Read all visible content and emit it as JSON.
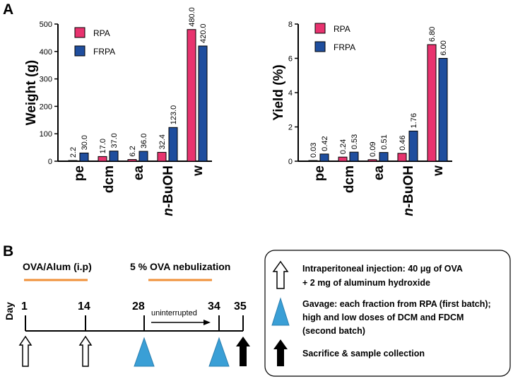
{
  "panels": {
    "a": "A",
    "b": "B"
  },
  "chart_data": [
    {
      "type": "bar",
      "ylabel": "Weight (g)",
      "ylim": [
        0,
        500
      ],
      "yticks": [
        0,
        100,
        200,
        300,
        400,
        500
      ],
      "categories": [
        "pe",
        "dcm",
        "ea",
        "n-BuOH",
        "w"
      ],
      "category_labels": [
        {
          "italic": "",
          "rest": "pe"
        },
        {
          "italic": "",
          "rest": "dcm"
        },
        {
          "italic": "",
          "rest": "ea"
        },
        {
          "italic": "n",
          "rest": "-BuOH"
        },
        {
          "italic": "",
          "rest": "w"
        }
      ],
      "series": [
        {
          "name": "RPA",
          "color": "#e8336f",
          "values": [
            2.2,
            17.0,
            6.2,
            32.4,
            480.0
          ],
          "labels": [
            "2.2",
            "17.0",
            "6.2",
            "32.4",
            "480.0"
          ]
        },
        {
          "name": "FRPA",
          "color": "#1f4e9e",
          "values": [
            30.0,
            37.0,
            36.0,
            123.0,
            420.0
          ],
          "labels": [
            "30.0",
            "37.0",
            "36.0",
            "123.0",
            "420.0"
          ]
        }
      ],
      "legend": "top-left"
    },
    {
      "type": "bar",
      "ylabel": "Yield (%)",
      "ylim": [
        0,
        8
      ],
      "yticks": [
        0,
        2,
        4,
        6,
        8
      ],
      "categories": [
        "pe",
        "dcm",
        "ea",
        "n-BuOH",
        "w"
      ],
      "category_labels": [
        {
          "italic": "",
          "rest": "pe"
        },
        {
          "italic": "",
          "rest": "dcm"
        },
        {
          "italic": "",
          "rest": "ea"
        },
        {
          "italic": "n",
          "rest": "-BuOH"
        },
        {
          "italic": "",
          "rest": "w"
        }
      ],
      "series": [
        {
          "name": "RPA",
          "color": "#e8336f",
          "values": [
            0.03,
            0.24,
            0.09,
            0.46,
            6.8
          ],
          "labels": [
            "0.03",
            "0.24",
            "0.09",
            "0.46",
            "6.80"
          ]
        },
        {
          "name": "FRPA",
          "color": "#1f4e9e",
          "values": [
            0.42,
            0.53,
            0.51,
            1.76,
            6.0
          ],
          "labels": [
            "0.42",
            "0.53",
            "0.51",
            "1.76",
            "6.00"
          ]
        }
      ],
      "legend": "top-left"
    }
  ],
  "timeline": {
    "day_label": "Day",
    "phases": [
      "OVA/Alum (i.p)",
      "5 % OVA nebulization"
    ],
    "phase_color": "#f0913a",
    "days": [
      "1",
      "14",
      "28",
      "34",
      "35"
    ],
    "interval_label": "uninterrupted",
    "markers": [
      "hollow-arrow",
      "hollow-arrow",
      "triangle",
      "triangle",
      "filled-arrow"
    ]
  },
  "legend_box": {
    "items": [
      {
        "icon": "hollow-arrow",
        "lines": [
          "Intraperitoneal injection: 40 μg of OVA",
          "+ 2 mg of aluminum hydroxide"
        ]
      },
      {
        "icon": "triangle",
        "lines": [
          "Gavage: each fraction from RPA (first batch);",
          "high and low doses of DCM and FDCM",
          "(second batch)"
        ]
      },
      {
        "icon": "filled-arrow",
        "lines": [
          "Sacrifice & sample collection"
        ]
      }
    ]
  },
  "colors": {
    "triangle": "#3a9fd6",
    "axis": "#000000"
  }
}
